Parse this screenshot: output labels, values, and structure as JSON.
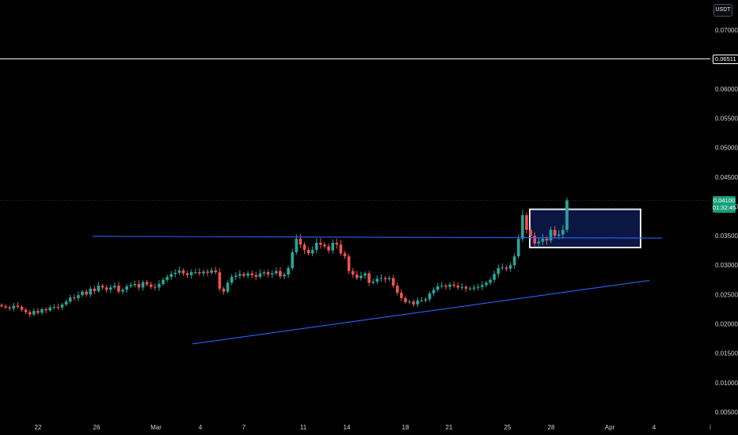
{
  "header": {
    "currency": "USDT"
  },
  "chart_data": {
    "type": "candlestick",
    "y_axis": {
      "ticks": [
        "0.07000",
        "0.06500",
        "0.06000",
        "0.05500",
        "0.05000",
        "0.04500",
        "0.04000",
        "0.03500",
        "0.03000",
        "0.02500",
        "0.02000",
        "0.01500",
        "0.01000",
        "0.00500"
      ],
      "range": [
        0.0035,
        0.072
      ],
      "side": "right"
    },
    "x_axis": {
      "ticks": [
        "22",
        "26",
        "Mar",
        "4",
        "7",
        "11",
        "14",
        "18",
        "21",
        "25",
        "28",
        "Apr",
        "4"
      ],
      "start": "Feb 20",
      "end": "Apr 5"
    },
    "horizontal_levels": [
      {
        "value": 0.06511,
        "label": "0.06511",
        "color": "#ffffff"
      }
    ],
    "current_price": {
      "value": 0.041,
      "label": "0.04100",
      "countdown": "01:32:45",
      "color": "#16a07a"
    },
    "trendlines": [
      {
        "name": "resistance",
        "color": "#2962ff",
        "from": {
          "x": "Feb 26",
          "y": 0.0349
        },
        "to": {
          "x": "Apr 4",
          "y": 0.0346
        }
      },
      {
        "name": "support",
        "color": "#2962ff",
        "from": {
          "x": "Mar 3",
          "y": 0.0166
        },
        "to": {
          "x": "Apr 4",
          "y": 0.0274
        }
      }
    ],
    "rectangle": {
      "from_x": "Mar 27",
      "to_x": "Apr 2",
      "top": 0.0395,
      "bottom": 0.033,
      "border": "#e6e9ef",
      "fill": "#0d1a4d"
    },
    "colors": {
      "up": "#26a69a",
      "down": "#ef5350",
      "background": "#000000"
    },
    "candles_close": [
      0.023,
      0.0228,
      0.0226,
      0.0231,
      0.0229,
      0.0224,
      0.022,
      0.0216,
      0.0222,
      0.0219,
      0.0225,
      0.0223,
      0.0228,
      0.0229,
      0.0228,
      0.0233,
      0.0238,
      0.0245,
      0.0244,
      0.0249,
      0.0255,
      0.025,
      0.026,
      0.0256,
      0.0265,
      0.0262,
      0.0258,
      0.0262,
      0.0265,
      0.0255,
      0.0258,
      0.0264,
      0.0266,
      0.0268,
      0.0262,
      0.0271,
      0.0267,
      0.0263,
      0.0262,
      0.0268,
      0.0275,
      0.028,
      0.0285,
      0.0287,
      0.0291,
      0.0286,
      0.0283,
      0.0288,
      0.0288,
      0.0286,
      0.0289,
      0.0287,
      0.0291,
      0.0288,
      0.026,
      0.0255,
      0.027,
      0.028,
      0.0282,
      0.0285,
      0.0282,
      0.0286,
      0.0283,
      0.028,
      0.0286,
      0.0288,
      0.0284,
      0.0286,
      0.029,
      0.0281,
      0.0284,
      0.0295,
      0.0322,
      0.0345,
      0.0335,
      0.0326,
      0.032,
      0.0326,
      0.0338,
      0.0335,
      0.0332,
      0.0325,
      0.0338,
      0.0335,
      0.032,
      0.0315,
      0.029,
      0.0284,
      0.0278,
      0.0282,
      0.0286,
      0.027,
      0.0272,
      0.0277,
      0.0278,
      0.0276,
      0.0278,
      0.0265,
      0.0253,
      0.0244,
      0.0237,
      0.0238,
      0.0233,
      0.024,
      0.024,
      0.0242,
      0.0252,
      0.0258,
      0.0264,
      0.0265,
      0.0263,
      0.0267,
      0.0265,
      0.0262,
      0.0263,
      0.026,
      0.026,
      0.0262,
      0.0263,
      0.0266,
      0.027,
      0.0275,
      0.0285,
      0.0295,
      0.0296,
      0.0294,
      0.03,
      0.0315,
      0.0345,
      0.0385,
      0.036,
      0.035,
      0.0337,
      0.034,
      0.0345,
      0.0342,
      0.036,
      0.035,
      0.0352,
      0.036,
      0.041
    ]
  }
}
